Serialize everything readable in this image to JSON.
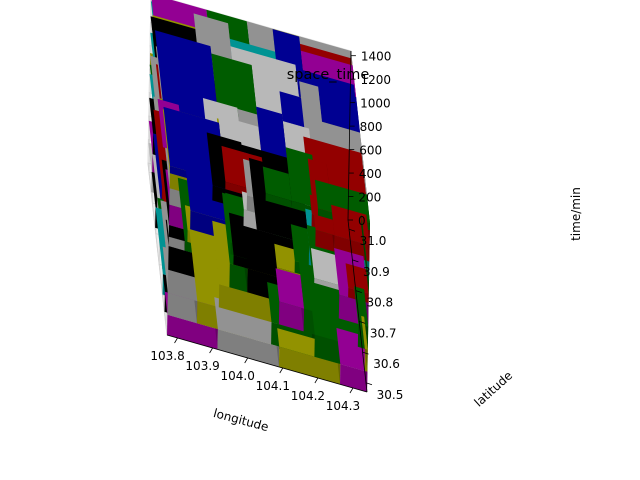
{
  "chart_data": {
    "type": "3d-voxel",
    "title": "space_time",
    "xlabel": "longitude",
    "ylabel": "latitude",
    "zlabel": "time/min",
    "xlim": [
      103.77,
      104.34
    ],
    "ylim": [
      30.47,
      31.03
    ],
    "zlim": [
      0,
      1440
    ],
    "x_ticks": [
      "103.8",
      "103.9",
      "104.0",
      "104.1",
      "104.2",
      "104.3"
    ],
    "y_ticks": [
      "30.5",
      "30.6",
      "30.7",
      "30.8",
      "30.9",
      "31.0"
    ],
    "z_ticks": [
      "0",
      "200",
      "400",
      "600",
      "800",
      "1000",
      "1200",
      "1400"
    ],
    "x_tick_values": [
      103.8,
      103.9,
      104.0,
      104.1,
      104.2,
      104.3
    ],
    "y_tick_values": [
      30.5,
      30.6,
      30.7,
      30.8,
      30.9,
      31.0
    ],
    "z_tick_values": [
      0,
      200,
      400,
      600,
      800,
      1000,
      1200,
      1400
    ],
    "grid": true,
    "palette": [
      "#000000",
      "#7f7f7f",
      "#800000",
      "#008080",
      "#800080",
      "#00007f",
      "#005000",
      "#7f7f00",
      "#a0a0a0"
    ]
  }
}
